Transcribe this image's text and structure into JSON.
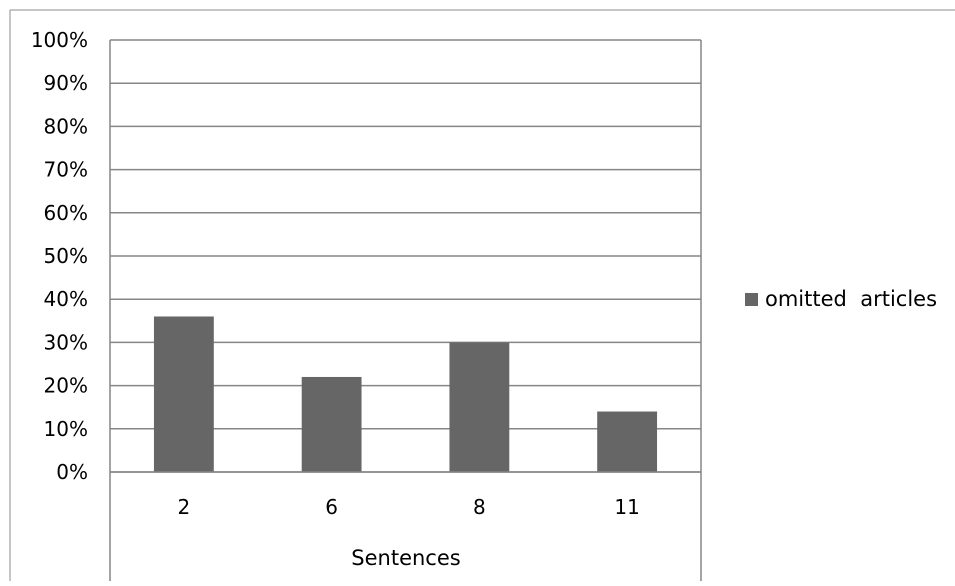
{
  "chart_data": {
    "type": "bar",
    "title": "",
    "xlabel": "Sentences",
    "ylabel": "",
    "categories": [
      "2",
      "6",
      "8",
      "11"
    ],
    "series": [
      {
        "name": "omitted  articles",
        "values": [
          36,
          22,
          30,
          14
        ],
        "color": "#666666"
      }
    ],
    "ylim": [
      0,
      100
    ],
    "yticks": [
      0,
      10,
      20,
      30,
      40,
      50,
      60,
      70,
      80,
      90,
      100
    ],
    "ytick_labels": [
      "0%",
      "10%",
      "20%",
      "30%",
      "40%",
      "50%",
      "60%",
      "70%",
      "80%",
      "90%",
      "100%"
    ],
    "grid": true,
    "legend_position": "right"
  }
}
